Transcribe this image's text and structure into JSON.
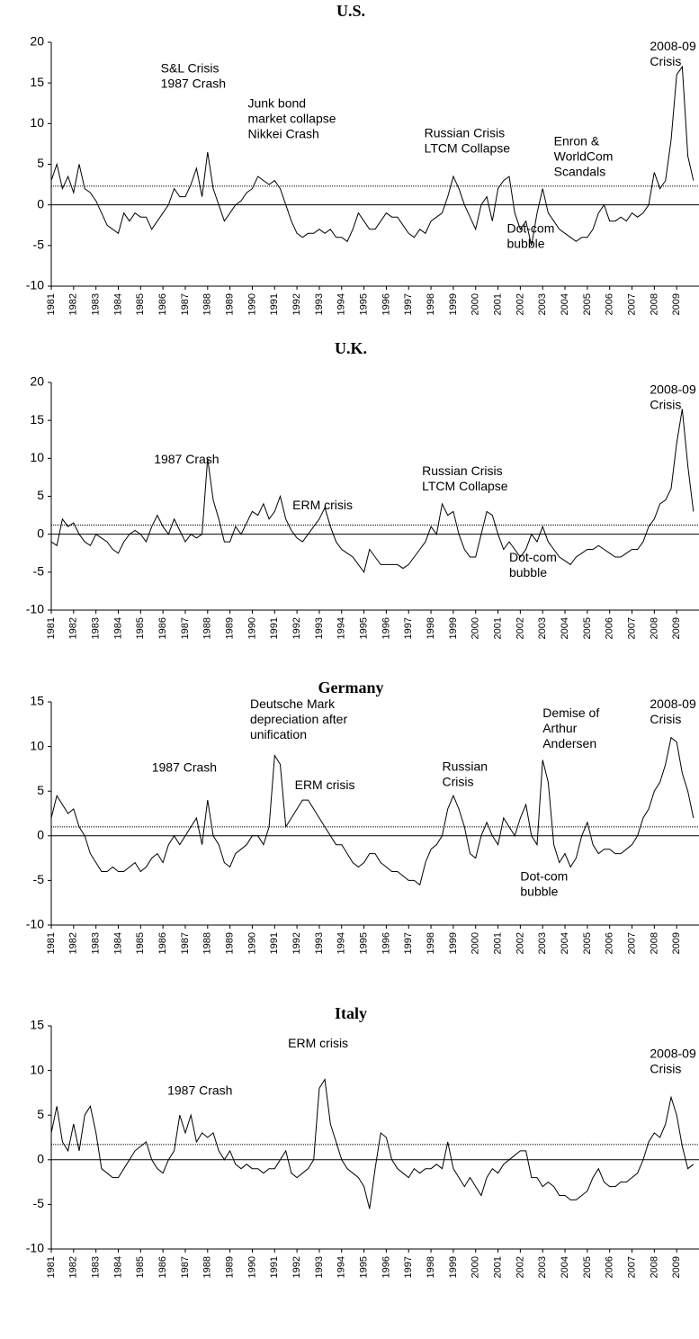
{
  "chart_data": [
    {
      "type": "line",
      "title": "U.S.",
      "x": [
        1981,
        1981.25,
        1981.5,
        1981.75,
        1982,
        1982.25,
        1982.5,
        1982.75,
        1983,
        1983.25,
        1983.5,
        1983.75,
        1984,
        1984.25,
        1984.5,
        1984.75,
        1985,
        1985.25,
        1985.5,
        1985.75,
        1986,
        1986.25,
        1986.5,
        1986.75,
        1987,
        1987.25,
        1987.5,
        1987.75,
        1988,
        1988.25,
        1988.5,
        1988.75,
        1989,
        1989.25,
        1989.5,
        1989.75,
        1990,
        1990.25,
        1990.5,
        1990.75,
        1991,
        1991.25,
        1991.5,
        1991.75,
        1992,
        1992.25,
        1992.5,
        1992.75,
        1993,
        1993.25,
        1993.5,
        1993.75,
        1994,
        1994.25,
        1994.5,
        1994.75,
        1995,
        1995.25,
        1995.5,
        1995.75,
        1996,
        1996.25,
        1996.5,
        1996.75,
        1997,
        1997.25,
        1997.5,
        1997.75,
        1998,
        1998.25,
        1998.5,
        1998.75,
        1999,
        1999.25,
        1999.5,
        1999.75,
        2000,
        2000.25,
        2000.5,
        2000.75,
        2001,
        2001.25,
        2001.5,
        2001.75,
        2002,
        2002.25,
        2002.5,
        2002.75,
        2003,
        2003.25,
        2003.5,
        2003.75,
        2004,
        2004.25,
        2004.5,
        2004.75,
        2005,
        2005.25,
        2005.5,
        2005.75,
        2006,
        2006.25,
        2006.5,
        2006.75,
        2007,
        2007.25,
        2007.5,
        2007.75,
        2008,
        2008.25,
        2008.5,
        2008.75,
        2009,
        2009.25,
        2009.5,
        2009.75
      ],
      "values": [
        3,
        5,
        2,
        3.5,
        1.5,
        5,
        2,
        1.5,
        0.5,
        -1,
        -2.5,
        -3,
        -3.5,
        -1,
        -2,
        -1,
        -1.5,
        -1.5,
        -3,
        -2,
        -1,
        0,
        2,
        1,
        1,
        2.5,
        4.5,
        1,
        6.5,
        2,
        0,
        -2,
        -1,
        0,
        0.5,
        1.5,
        2,
        3.5,
        3,
        2.5,
        3,
        2,
        0,
        -2,
        -3.5,
        -4,
        -3.5,
        -3.5,
        -3,
        -3.5,
        -3,
        -4,
        -4,
        -4.5,
        -3,
        -1,
        -2,
        -3,
        -3,
        -2,
        -1,
        -1.5,
        -1.5,
        -2.5,
        -3.5,
        -4,
        -3,
        -3.5,
        -2,
        -1.5,
        -1,
        1,
        3.5,
        2,
        0,
        -1.5,
        -3,
        0,
        1,
        -2,
        2,
        3,
        3.5,
        -1,
        -3,
        -2,
        -5,
        -1,
        2,
        -1,
        -2,
        -3,
        -3.5,
        -4,
        -4.5,
        -4,
        -4,
        -3,
        -1,
        0,
        -2,
        -2,
        -1.5,
        -2,
        -1,
        -1.5,
        -1,
        0,
        4,
        2,
        3,
        8,
        16,
        17,
        6,
        3
      ],
      "reference_line": 2.3,
      "color": "#000000",
      "xlim": [
        1981,
        2010
      ],
      "xticks": [
        1981,
        1982,
        1983,
        1984,
        1985,
        1986,
        1987,
        1988,
        1989,
        1990,
        1991,
        1992,
        1993,
        1994,
        1995,
        1996,
        1997,
        1998,
        1999,
        2000,
        2001,
        2002,
        2003,
        2004,
        2005,
        2006,
        2007,
        2008,
        2009
      ],
      "ylim": [
        -10,
        20
      ],
      "yticks": [
        -10,
        -5,
        0,
        5,
        10,
        15,
        20
      ],
      "annotations": [
        [
          "S&L Crisis",
          "1987 Crash"
        ],
        [
          "Junk bond",
          "market collapse",
          "Nikkei Crash"
        ],
        [
          "Russian Crisis",
          "LTCM Collapse"
        ],
        [
          "Enron &",
          "WorldCom",
          "Scandals"
        ],
        [
          "Dot-com",
          "bubble"
        ],
        [
          "2008-09",
          "Crisis"
        ]
      ]
    },
    {
      "type": "line",
      "title": "U.K.",
      "x": [
        1981,
        1981.25,
        1981.5,
        1981.75,
        1982,
        1982.25,
        1982.5,
        1982.75,
        1983,
        1983.25,
        1983.5,
        1983.75,
        1984,
        1984.25,
        1984.5,
        1984.75,
        1985,
        1985.25,
        1985.5,
        1985.75,
        1986,
        1986.25,
        1986.5,
        1986.75,
        1987,
        1987.25,
        1987.5,
        1987.75,
        1988,
        1988.25,
        1988.5,
        1988.75,
        1989,
        1989.25,
        1989.5,
        1989.75,
        1990,
        1990.25,
        1990.5,
        1990.75,
        1991,
        1991.25,
        1991.5,
        1991.75,
        1992,
        1992.25,
        1992.5,
        1992.75,
        1993,
        1993.25,
        1993.5,
        1993.75,
        1994,
        1994.25,
        1994.5,
        1994.75,
        1995,
        1995.25,
        1995.5,
        1995.75,
        1996,
        1996.25,
        1996.5,
        1996.75,
        1997,
        1997.25,
        1997.5,
        1997.75,
        1998,
        1998.25,
        1998.5,
        1998.75,
        1999,
        1999.25,
        1999.5,
        1999.75,
        2000,
        2000.25,
        2000.5,
        2000.75,
        2001,
        2001.25,
        2001.5,
        2001.75,
        2002,
        2002.25,
        2002.5,
        2002.75,
        2003,
        2003.25,
        2003.5,
        2003.75,
        2004,
        2004.25,
        2004.5,
        2004.75,
        2005,
        2005.25,
        2005.5,
        2005.75,
        2006,
        2006.25,
        2006.5,
        2006.75,
        2007,
        2007.25,
        2007.5,
        2007.75,
        2008,
        2008.25,
        2008.5,
        2008.75,
        2009,
        2009.25,
        2009.5,
        2009.75
      ],
      "values": [
        -1,
        -1.5,
        2,
        1,
        1.5,
        0,
        -1,
        -1.5,
        0,
        -0.5,
        -1,
        -2,
        -2.5,
        -1,
        0,
        0.5,
        0,
        -1,
        1,
        2.5,
        1,
        0,
        2,
        0.5,
        -1,
        0,
        -0.5,
        0,
        10,
        4.5,
        2,
        -1,
        -1,
        1,
        0,
        1.5,
        3,
        2.5,
        4,
        2,
        3,
        5,
        2,
        0.5,
        -0.5,
        -1,
        0,
        1,
        2,
        3.5,
        1,
        -1,
        -2,
        -2.5,
        -3,
        -4,
        -5,
        -2,
        -3,
        -4,
        -4,
        -4,
        -4,
        -4.5,
        -4,
        -3,
        -2,
        -1,
        1,
        0,
        4,
        2.5,
        3,
        0,
        -2,
        -3,
        -3,
        0,
        3,
        2.5,
        0,
        -2,
        -1,
        -2,
        -3,
        -2,
        0,
        -1,
        1,
        -1,
        -2,
        -3,
        -3.5,
        -4,
        -3,
        -2.5,
        -2,
        -2,
        -1.5,
        -2,
        -2.5,
        -3,
        -3,
        -2.5,
        -2,
        -2,
        -1,
        1,
        2,
        4,
        4.5,
        6,
        12,
        16.5,
        9,
        3
      ],
      "reference_line": 1.2,
      "color": "#000000",
      "xlim": [
        1981,
        2010
      ],
      "xticks": [
        1981,
        1982,
        1983,
        1984,
        1985,
        1986,
        1987,
        1988,
        1989,
        1990,
        1991,
        1992,
        1993,
        1994,
        1995,
        1996,
        1997,
        1998,
        1999,
        2000,
        2001,
        2002,
        2003,
        2004,
        2005,
        2006,
        2007,
        2008,
        2009
      ],
      "ylim": [
        -10,
        20
      ],
      "yticks": [
        -10,
        -5,
        0,
        5,
        10,
        15,
        20
      ],
      "annotations": [
        [
          "1987 Crash"
        ],
        [
          "ERM crisis"
        ],
        [
          "Russian Crisis",
          "LTCM Collapse"
        ],
        [
          "Dot-com",
          "bubble"
        ],
        [
          "2008-09",
          "Crisis"
        ]
      ]
    },
    {
      "type": "line",
      "title": "Germany",
      "x": [
        1981,
        1981.25,
        1981.5,
        1981.75,
        1982,
        1982.25,
        1982.5,
        1982.75,
        1983,
        1983.25,
        1983.5,
        1983.75,
        1984,
        1984.25,
        1984.5,
        1984.75,
        1985,
        1985.25,
        1985.5,
        1985.75,
        1986,
        1986.25,
        1986.5,
        1986.75,
        1987,
        1987.25,
        1987.5,
        1987.75,
        1988,
        1988.25,
        1988.5,
        1988.75,
        1989,
        1989.25,
        1989.5,
        1989.75,
        1990,
        1990.25,
        1990.5,
        1990.75,
        1991,
        1991.25,
        1991.5,
        1991.75,
        1992,
        1992.25,
        1992.5,
        1992.75,
        1993,
        1993.25,
        1993.5,
        1993.75,
        1994,
        1994.25,
        1994.5,
        1994.75,
        1995,
        1995.25,
        1995.5,
        1995.75,
        1996,
        1996.25,
        1996.5,
        1996.75,
        1997,
        1997.25,
        1997.5,
        1997.75,
        1998,
        1998.25,
        1998.5,
        1998.75,
        1999,
        1999.25,
        1999.5,
        1999.75,
        2000,
        2000.25,
        2000.5,
        2000.75,
        2001,
        2001.25,
        2001.5,
        2001.75,
        2002,
        2002.25,
        2002.5,
        2002.75,
        2003,
        2003.25,
        2003.5,
        2003.75,
        2004,
        2004.25,
        2004.5,
        2004.75,
        2005,
        2005.25,
        2005.5,
        2005.75,
        2006,
        2006.25,
        2006.5,
        2006.75,
        2007,
        2007.25,
        2007.5,
        2007.75,
        2008,
        2008.25,
        2008.5,
        2008.75,
        2009,
        2009.25,
        2009.5,
        2009.75
      ],
      "values": [
        2,
        4.5,
        3.5,
        2.5,
        3,
        1,
        0,
        -2,
        -3,
        -4,
        -4,
        -3.5,
        -4,
        -4,
        -3.5,
        -3,
        -4,
        -3.5,
        -2.5,
        -2,
        -3,
        -1,
        0,
        -1,
        0,
        1,
        2,
        -1,
        4,
        0,
        -1,
        -3,
        -3.5,
        -2,
        -1.5,
        -1,
        0,
        0,
        -1,
        1,
        9,
        8,
        1,
        2,
        3,
        4,
        4,
        3,
        2,
        1,
        0,
        -1,
        -1,
        -2,
        -3,
        -3.5,
        -3,
        -2,
        -2,
        -3,
        -3.5,
        -4,
        -4,
        -4.5,
        -5,
        -5,
        -5.5,
        -3,
        -1.5,
        -1,
        0,
        3,
        4.5,
        3,
        1,
        -2,
        -2.5,
        0,
        1.5,
        0,
        -1,
        2,
        1,
        0,
        2,
        3.5,
        0,
        -1,
        8.5,
        6,
        -1,
        -3,
        -2,
        -3.5,
        -2.5,
        0,
        1.5,
        -1,
        -2,
        -1.5,
        -1.5,
        -2,
        -2,
        -1.5,
        -1,
        0,
        2,
        3,
        5,
        6,
        8,
        11,
        10.5,
        7,
        5,
        2
      ],
      "reference_line": 1.0,
      "color": "#000000",
      "xlim": [
        1981,
        2010
      ],
      "xticks": [
        1981,
        1982,
        1983,
        1984,
        1985,
        1986,
        1987,
        1988,
        1989,
        1990,
        1991,
        1992,
        1993,
        1994,
        1995,
        1996,
        1997,
        1998,
        1999,
        2000,
        2001,
        2002,
        2003,
        2004,
        2005,
        2006,
        2007,
        2008,
        2009
      ],
      "ylim": [
        -10,
        15
      ],
      "yticks": [
        -10,
        -5,
        0,
        5,
        10,
        15
      ],
      "annotations": [
        [
          "Deutsche Mark",
          "depreciation after",
          "unification"
        ],
        [
          "1987 Crash"
        ],
        [
          "ERM crisis"
        ],
        [
          "Russian",
          "Crisis"
        ],
        [
          "Demise of",
          "Arthur",
          "Andersen"
        ],
        [
          "Dot-com",
          "bubble"
        ],
        [
          "2008-09",
          "Crisis"
        ]
      ]
    },
    {
      "type": "line",
      "title": "Italy",
      "x": [
        1981,
        1981.25,
        1981.5,
        1981.75,
        1982,
        1982.25,
        1982.5,
        1982.75,
        1983,
        1983.25,
        1983.5,
        1983.75,
        1984,
        1984.25,
        1984.5,
        1984.75,
        1985,
        1985.25,
        1985.5,
        1985.75,
        1986,
        1986.25,
        1986.5,
        1986.75,
        1987,
        1987.25,
        1987.5,
        1987.75,
        1988,
        1988.25,
        1988.5,
        1988.75,
        1989,
        1989.25,
        1989.5,
        1989.75,
        1990,
        1990.25,
        1990.5,
        1990.75,
        1991,
        1991.25,
        1991.5,
        1991.75,
        1992,
        1992.25,
        1992.5,
        1992.75,
        1993,
        1993.25,
        1993.5,
        1993.75,
        1994,
        1994.25,
        1994.5,
        1994.75,
        1995,
        1995.25,
        1995.5,
        1995.75,
        1996,
        1996.25,
        1996.5,
        1996.75,
        1997,
        1997.25,
        1997.5,
        1997.75,
        1998,
        1998.25,
        1998.5,
        1998.75,
        1999,
        1999.25,
        1999.5,
        1999.75,
        2000,
        2000.25,
        2000.5,
        2000.75,
        2001,
        2001.25,
        2001.5,
        2001.75,
        2002,
        2002.25,
        2002.5,
        2002.75,
        2003,
        2003.25,
        2003.5,
        2003.75,
        2004,
        2004.25,
        2004.5,
        2004.75,
        2005,
        2005.25,
        2005.5,
        2005.75,
        2006,
        2006.25,
        2006.5,
        2006.75,
        2007,
        2007.25,
        2007.5,
        2007.75,
        2008,
        2008.25,
        2008.5,
        2008.75,
        2009,
        2009.25,
        2009.5,
        2009.75
      ],
      "values": [
        3,
        6,
        2,
        1,
        4,
        1,
        5,
        6,
        3,
        -1,
        -1.5,
        -2,
        -2,
        -1,
        0,
        1,
        1.5,
        2,
        0,
        -1,
        -1.5,
        0,
        1,
        5,
        3,
        5,
        2,
        3,
        2.5,
        3,
        1,
        0,
        1,
        -0.5,
        -1,
        -0.5,
        -1,
        -1,
        -1.5,
        -1,
        -1,
        0,
        1,
        -1.5,
        -2,
        -1.5,
        -1,
        0,
        8,
        9,
        4,
        2,
        0,
        -1,
        -1.5,
        -2,
        -3,
        -5.5,
        -1,
        3,
        2.5,
        0,
        -1,
        -1.5,
        -2,
        -1,
        -1.5,
        -1,
        -1,
        -0.5,
        -1,
        2,
        -1,
        -2,
        -3,
        -2,
        -3,
        -4,
        -2,
        -1,
        -1.5,
        -0.5,
        0,
        0.5,
        1,
        1,
        -2,
        -2,
        -3,
        -2.5,
        -3,
        -4,
        -4,
        -4.5,
        -4.5,
        -4,
        -3.5,
        -2,
        -1,
        -2.5,
        -3,
        -3,
        -2.5,
        -2.5,
        -2,
        -1.5,
        0,
        2,
        3,
        2.5,
        4,
        7,
        5,
        1.5,
        -1,
        -0.5
      ],
      "reference_line": 1.7,
      "color": "#000000",
      "xlim": [
        1981,
        2010
      ],
      "xticks": [
        1981,
        1982,
        1983,
        1984,
        1985,
        1986,
        1987,
        1988,
        1989,
        1990,
        1991,
        1992,
        1993,
        1994,
        1995,
        1996,
        1997,
        1998,
        1999,
        2000,
        2001,
        2002,
        2003,
        2004,
        2005,
        2006,
        2007,
        2008,
        2009
      ],
      "ylim": [
        -10,
        15
      ],
      "yticks": [
        -10,
        -5,
        0,
        5,
        10,
        15
      ],
      "annotations": [
        [
          "ERM crisis"
        ],
        [
          "1987 Crash"
        ],
        [
          "2008-09",
          "Crisis"
        ]
      ]
    }
  ]
}
